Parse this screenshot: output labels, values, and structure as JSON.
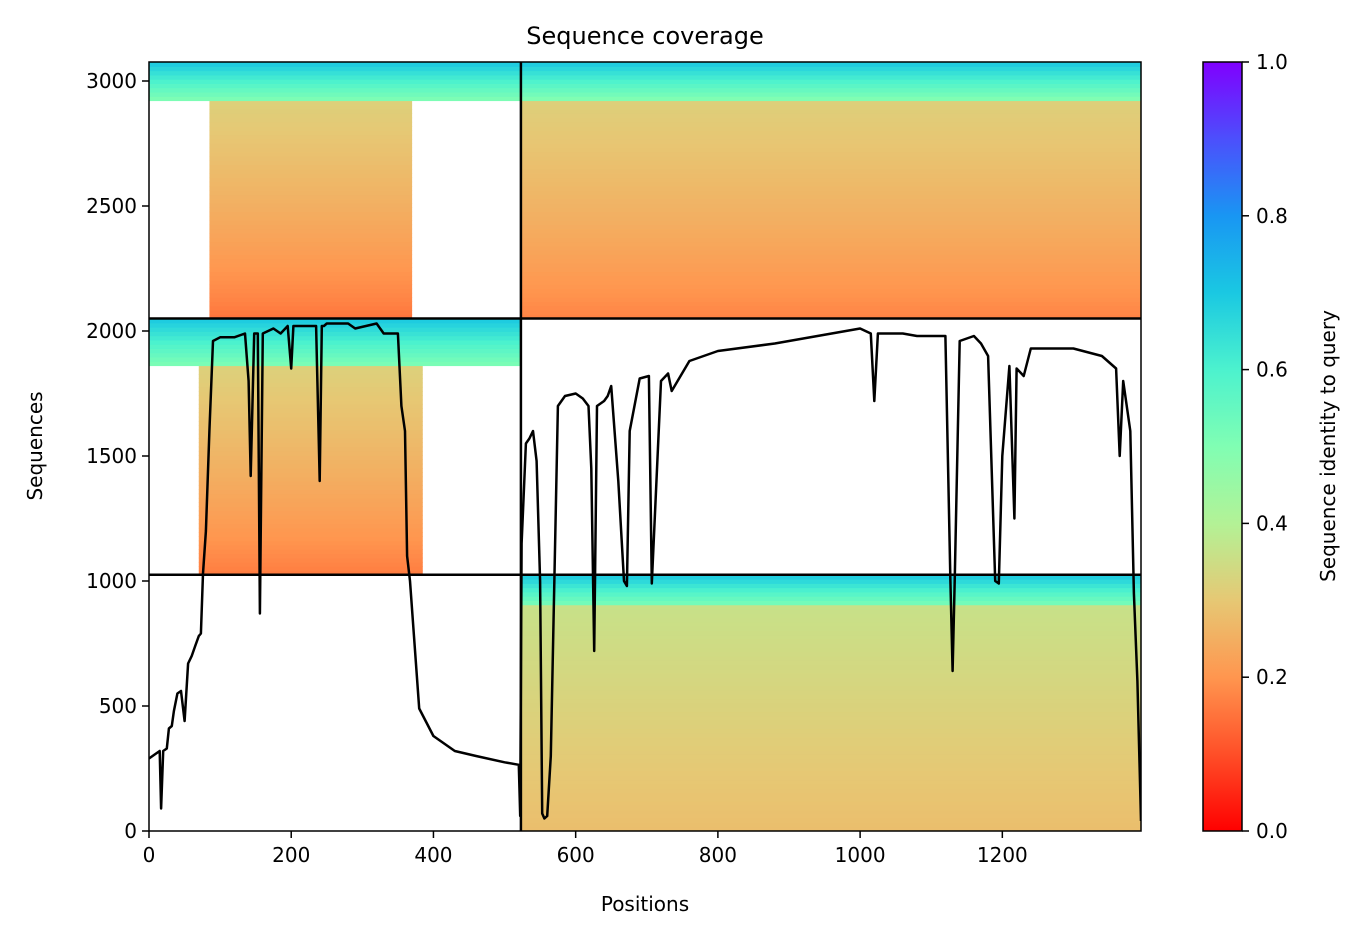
{
  "chart_data": {
    "type": "heatmap",
    "title": "Sequence coverage",
    "xlabel": "Positions",
    "ylabel": "Sequences",
    "xlim": [
      0,
      1395
    ],
    "ylim": [
      0,
      3076
    ],
    "xticks": [
      0,
      200,
      400,
      600,
      800,
      1000,
      1200
    ],
    "yticks": [
      0,
      500,
      1000,
      1500,
      2000,
      2500,
      3000
    ],
    "colorbar": {
      "label": "Sequence identity to query",
      "colormap": "rainbow",
      "range": [
        0,
        1
      ],
      "ticks": [
        0.0,
        0.2,
        0.4,
        0.6,
        0.8,
        1.0
      ],
      "tick_labels": [
        "0.0",
        "0.2",
        "0.4",
        "0.6",
        "0.8",
        "1.0"
      ]
    },
    "boundaries": {
      "x": [
        523
      ],
      "y": [
        1025,
        2050
      ]
    },
    "blocks": [
      {
        "x": [
          0,
          523
        ],
        "y": [
          2050,
          3076
        ],
        "pos_range": [
          85,
          370
        ],
        "identity_top": 0.62,
        "identity_bottom": 0.15,
        "high_id_from": 2925,
        "label": "top-left"
      },
      {
        "x": [
          523,
          1395
        ],
        "y": [
          2050,
          3076
        ],
        "pos_range": [
          523,
          1395
        ],
        "identity_top": 0.62,
        "identity_bottom": 0.17,
        "high_id_from": 2930,
        "label": "top-right"
      },
      {
        "x": [
          0,
          523
        ],
        "y": [
          1025,
          2050
        ],
        "pos_range": [
          70,
          385
        ],
        "identity_top": 0.65,
        "identity_bottom": 0.16,
        "high_id_from": 1860,
        "label": "middle-left"
      },
      {
        "x": [
          523,
          1395
        ],
        "y": [
          0,
          1025
        ],
        "pos_range": [
          523,
          1395
        ],
        "identity_top": 0.55,
        "identity_bottom": 0.28,
        "high_id_from": 900,
        "label": "bottom-right"
      }
    ],
    "coverage_line": {
      "name": "",
      "x": [
        0,
        10,
        15,
        17,
        20,
        25,
        28,
        32,
        35,
        40,
        45,
        50,
        55,
        60,
        65,
        70,
        73,
        76,
        80,
        85,
        90,
        100,
        120,
        135,
        140,
        143,
        148,
        153,
        156,
        160,
        175,
        185,
        195,
        200,
        203,
        210,
        235,
        240,
        243,
        246,
        250,
        280,
        290,
        320,
        330,
        350,
        355,
        360,
        363,
        367,
        380,
        400,
        430,
        460,
        500,
        520,
        522,
        524,
        530,
        535,
        540,
        545,
        550,
        553,
        556,
        560,
        565,
        575,
        585,
        600,
        610,
        618,
        622,
        626,
        630,
        640,
        645,
        650,
        660,
        668,
        672,
        676,
        690,
        703,
        707,
        720,
        730,
        735,
        760,
        800,
        880,
        1000,
        1015,
        1020,
        1025,
        1030,
        1060,
        1080,
        1120,
        1127,
        1130,
        1133,
        1140,
        1160,
        1170,
        1180,
        1190,
        1195,
        1200,
        1210,
        1217,
        1220,
        1230,
        1240,
        1250,
        1300,
        1340,
        1360,
        1365,
        1370,
        1380,
        1385,
        1390,
        1395
      ],
      "y": [
        290,
        310,
        320,
        90,
        320,
        330,
        410,
        420,
        480,
        550,
        560,
        440,
        670,
        700,
        740,
        780,
        790,
        1030,
        1200,
        1600,
        1960,
        1975,
        1975,
        1990,
        1800,
        1420,
        1990,
        1990,
        870,
        1990,
        2010,
        1990,
        2020,
        1850,
        2020,
        2020,
        2020,
        1400,
        2020,
        2020,
        2030,
        2030,
        2010,
        2030,
        1990,
        1990,
        1700,
        1600,
        1100,
        1000,
        490,
        380,
        320,
        300,
        275,
        265,
        60,
        1150,
        1550,
        1570,
        1600,
        1480,
        1000,
        70,
        50,
        60,
        300,
        1700,
        1740,
        1750,
        1730,
        1700,
        1450,
        720,
        1700,
        1720,
        1740,
        1780,
        1400,
        1000,
        980,
        1600,
        1810,
        1820,
        990,
        1800,
        1830,
        1760,
        1880,
        1920,
        1950,
        2010,
        1990,
        1720,
        1990,
        1990,
        1990,
        1980,
        1980,
        1000,
        640,
        1000,
        1960,
        1980,
        1950,
        1900,
        1000,
        990,
        1500,
        1860,
        1250,
        1850,
        1820,
        1930,
        1930,
        1930,
        1900,
        1850,
        1500,
        1800,
        1600,
        950,
        600,
        40
      ]
    }
  }
}
